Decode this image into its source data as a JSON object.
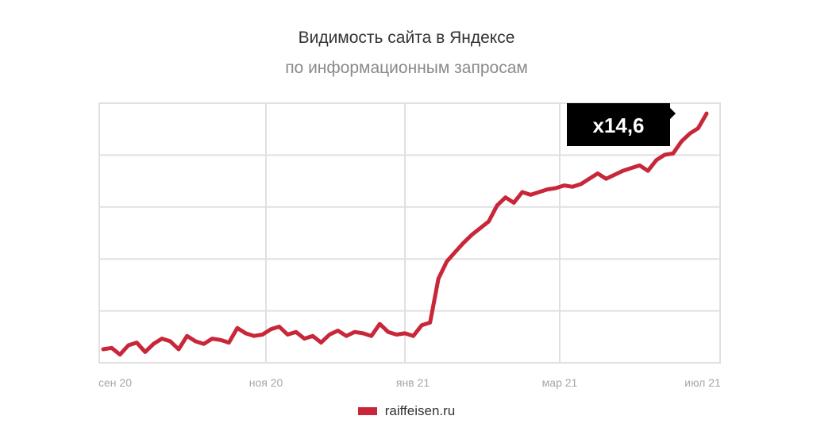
{
  "colors": {
    "series": "#c8273a",
    "grid": "#e0e0e0",
    "badge": "#000000"
  },
  "chart_data": {
    "type": "line",
    "title": "Видимость сайта в Яндексе",
    "subtitle": "по информационным запросам",
    "xlabel": "",
    "ylabel": "",
    "x_ticks": [
      "сен 20",
      "ноя 20",
      "янв 21",
      "мар 21",
      "июл 21"
    ],
    "y_gridlines": 5,
    "grid": true,
    "legend_position": "bottom-center",
    "annotation": {
      "text": "x14,6",
      "position": "top-right"
    },
    "series": [
      {
        "name": "raiffeisen.ru",
        "values": [
          1.0,
          1.1,
          0.6,
          1.3,
          1.5,
          0.8,
          1.4,
          1.8,
          1.6,
          1.0,
          2.0,
          1.6,
          1.4,
          1.8,
          1.7,
          1.5,
          2.6,
          2.2,
          2.0,
          2.1,
          2.5,
          2.7,
          2.1,
          2.3,
          1.8,
          2.0,
          1.5,
          2.1,
          2.4,
          2.0,
          2.3,
          2.2,
          2.0,
          2.9,
          2.3,
          2.1,
          2.2,
          2.0,
          2.8,
          3.0,
          6.3,
          7.6,
          8.3,
          9.0,
          9.6,
          10.1,
          10.6,
          11.8,
          12.4,
          12.0,
          12.8,
          12.6,
          12.8,
          13.0,
          13.1,
          13.3,
          13.2,
          13.4,
          13.8,
          14.2,
          13.8,
          14.1,
          14.4,
          14.6,
          14.8,
          14.4,
          15.2,
          15.6,
          15.7,
          16.6,
          17.2,
          17.6,
          18.7
        ]
      }
    ]
  }
}
